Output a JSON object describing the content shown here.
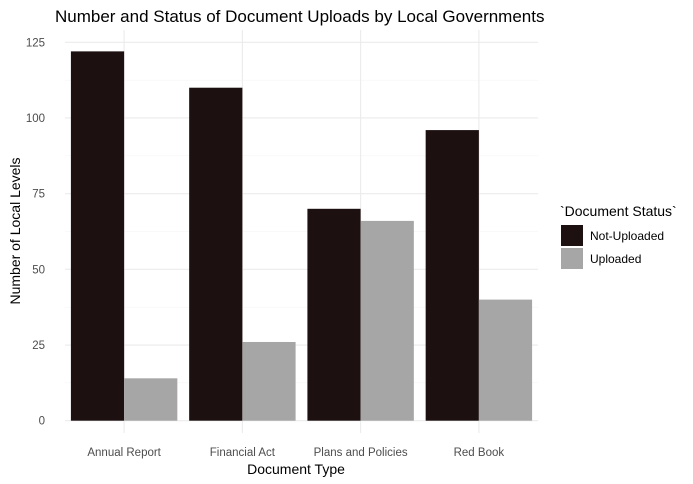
{
  "chart_data": {
    "type": "bar",
    "title": "Number and Status of Document Uploads by Local Governments",
    "xlabel": "Document Type",
    "ylabel": "Number of Local Levels",
    "categories": [
      "Annual Report",
      "Financial Act",
      "Plans and Policies",
      "Red Book"
    ],
    "series": [
      {
        "name": "Not-Uploaded",
        "values": [
          122,
          110,
          70,
          96
        ],
        "color": "#1c1010"
      },
      {
        "name": "Uploaded",
        "values": [
          14,
          26,
          66,
          40
        ],
        "color": "#a6a6a6"
      }
    ],
    "ylim": [
      0,
      125
    ],
    "yticks": [
      0,
      25,
      50,
      75,
      100,
      125
    ],
    "legend": {
      "title": "`Document Status`",
      "placement": "right"
    },
    "grid": true
  }
}
